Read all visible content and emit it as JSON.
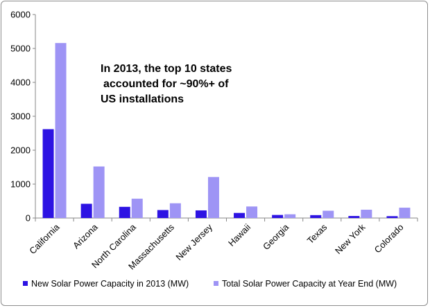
{
  "chart_data": {
    "type": "bar",
    "title": "",
    "xlabel": "",
    "ylabel": "",
    "ylim": [
      0,
      6000
    ],
    "yticks": [
      0,
      1000,
      2000,
      3000,
      4000,
      5000,
      6000
    ],
    "grid": false,
    "categories": [
      "California",
      "Arizona",
      "North Carolina",
      "Massachusetts",
      "New Jersey",
      "Hawaii",
      "Georgia",
      "Texas",
      "New York",
      "Colorado"
    ],
    "series": [
      {
        "name": "New Solar Power Capacity in 2013 (MW)",
        "color": "#2d13e3",
        "values": [
          2620,
          420,
          330,
          235,
          225,
          150,
          90,
          85,
          60,
          55
        ]
      },
      {
        "name": "Total Solar Power Capacity at Year End (MW)",
        "color": "#9e94f5",
        "values": [
          5160,
          1520,
          570,
          435,
          1210,
          340,
          110,
          215,
          245,
          305
        ]
      }
    ],
    "annotation": [
      "In 2013, the top 10 states",
      "accounted for ~90%+ of",
      "US installations"
    ],
    "legend_position": "bottom"
  }
}
